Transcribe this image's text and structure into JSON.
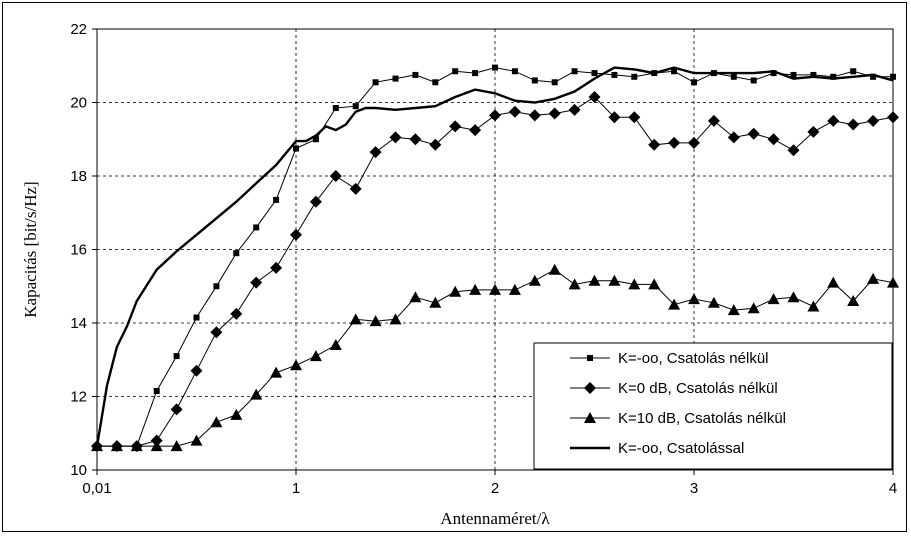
{
  "chart_data": {
    "type": "line",
    "title": "",
    "xlabel": "Antennaméret/λ",
    "ylabel": "Kapacitás [bit/s/Hz]",
    "x_tick_labels": [
      "0,01",
      "1",
      "2",
      "3",
      "4"
    ],
    "x_tick_values": [
      0,
      1,
      2,
      3,
      4
    ],
    "y_tick_labels": [
      "10",
      "12",
      "14",
      "16",
      "18",
      "20",
      "22"
    ],
    "y_tick_values": [
      10,
      12,
      14,
      16,
      18,
      20,
      22
    ],
    "xlim": [
      0,
      4
    ],
    "ylim": [
      10,
      22
    ],
    "grid": "dashed, both axes",
    "legend_position": "bottom-right",
    "series": [
      {
        "name": "K=-oo, Csatolás nélkül",
        "marker": "square",
        "line_color": "#000000",
        "x": [
          0,
          0.1,
          0.2,
          0.3,
          0.4,
          0.5,
          0.6,
          0.7,
          0.8,
          0.9,
          1.0,
          1.1,
          1.2,
          1.3,
          1.4,
          1.5,
          1.6,
          1.7,
          1.8,
          1.9,
          2.0,
          2.1,
          2.2,
          2.3,
          2.4,
          2.5,
          2.6,
          2.7,
          2.8,
          2.9,
          3.0,
          3.1,
          3.2,
          3.3,
          3.4,
          3.5,
          3.6,
          3.7,
          3.8,
          3.9,
          4.0
        ],
        "y": [
          10.65,
          10.65,
          10.65,
          12.15,
          13.1,
          14.15,
          15.0,
          15.9,
          16.6,
          17.35,
          18.75,
          19.0,
          19.85,
          19.9,
          20.55,
          20.65,
          20.75,
          20.55,
          20.85,
          20.8,
          20.95,
          20.85,
          20.6,
          20.55,
          20.85,
          20.8,
          20.75,
          20.7,
          20.8,
          20.85,
          20.55,
          20.8,
          20.7,
          20.6,
          20.8,
          20.75,
          20.75,
          20.7,
          20.85,
          20.7,
          20.7
        ]
      },
      {
        "name": "K=0 dB, Csatolás nélkül",
        "marker": "diamond",
        "line_color": "#000000",
        "x": [
          0,
          0.1,
          0.2,
          0.3,
          0.4,
          0.5,
          0.6,
          0.7,
          0.8,
          0.9,
          1.0,
          1.1,
          1.2,
          1.3,
          1.4,
          1.5,
          1.6,
          1.7,
          1.8,
          1.9,
          2.0,
          2.1,
          2.2,
          2.3,
          2.4,
          2.5,
          2.6,
          2.7,
          2.8,
          2.9,
          3.0,
          3.1,
          3.2,
          3.3,
          3.4,
          3.5,
          3.6,
          3.7,
          3.8,
          3.9,
          4.0
        ],
        "y": [
          10.65,
          10.65,
          10.65,
          10.8,
          11.65,
          12.7,
          13.75,
          14.25,
          15.1,
          15.5,
          16.4,
          17.3,
          18.0,
          17.65,
          18.65,
          19.05,
          19.0,
          18.85,
          19.35,
          19.25,
          19.65,
          19.75,
          19.65,
          19.7,
          19.8,
          20.15,
          19.6,
          19.6,
          18.85,
          18.9,
          18.9,
          19.5,
          19.05,
          19.15,
          19.0,
          18.7,
          19.2,
          19.5,
          19.4,
          19.5,
          19.6
        ]
      },
      {
        "name": "K=10 dB, Csatolás nélkül",
        "marker": "triangle",
        "line_color": "#000000",
        "x": [
          0,
          0.1,
          0.2,
          0.3,
          0.4,
          0.5,
          0.6,
          0.7,
          0.8,
          0.9,
          1.0,
          1.1,
          1.2,
          1.3,
          1.4,
          1.5,
          1.6,
          1.7,
          1.8,
          1.9,
          2.0,
          2.1,
          2.2,
          2.3,
          2.4,
          2.5,
          2.6,
          2.7,
          2.8,
          2.9,
          3.0,
          3.1,
          3.2,
          3.3,
          3.4,
          3.5,
          3.6,
          3.7,
          3.8,
          3.9,
          4.0
        ],
        "y": [
          10.65,
          10.65,
          10.65,
          10.65,
          10.65,
          10.8,
          11.3,
          11.5,
          12.05,
          12.65,
          12.85,
          13.1,
          13.4,
          14.1,
          14.05,
          14.1,
          14.7,
          14.55,
          14.85,
          14.9,
          14.9,
          14.9,
          15.15,
          15.45,
          15.05,
          15.15,
          15.15,
          15.05,
          15.05,
          14.5,
          14.65,
          14.55,
          14.35,
          14.4,
          14.65,
          14.7,
          14.45,
          15.1,
          14.6,
          15.2,
          15.1
        ]
      },
      {
        "name": "K=-oo, Csatolással",
        "marker": "none",
        "line_color": "#000000",
        "x": [
          0,
          0.02,
          0.05,
          0.1,
          0.15,
          0.2,
          0.3,
          0.4,
          0.5,
          0.6,
          0.7,
          0.8,
          0.9,
          1.0,
          1.05,
          1.1,
          1.15,
          1.2,
          1.25,
          1.3,
          1.35,
          1.4,
          1.5,
          1.6,
          1.7,
          1.8,
          1.9,
          2.0,
          2.1,
          2.2,
          2.3,
          2.4,
          2.5,
          2.6,
          2.7,
          2.8,
          2.9,
          3.0,
          3.1,
          3.2,
          3.3,
          3.4,
          3.5,
          3.6,
          3.7,
          3.8,
          3.9,
          4.0
        ],
        "y": [
          10.65,
          11.3,
          12.3,
          13.35,
          13.9,
          14.6,
          15.45,
          15.95,
          16.4,
          16.85,
          17.3,
          17.8,
          18.3,
          18.95,
          18.95,
          19.1,
          19.35,
          19.25,
          19.4,
          19.75,
          19.85,
          19.85,
          19.8,
          19.85,
          19.9,
          20.15,
          20.35,
          20.25,
          20.05,
          20.0,
          20.1,
          20.3,
          20.65,
          20.95,
          20.9,
          20.8,
          20.95,
          20.8,
          20.8,
          20.8,
          20.8,
          20.85,
          20.65,
          20.7,
          20.65,
          20.7,
          20.75,
          20.6
        ]
      }
    ]
  }
}
